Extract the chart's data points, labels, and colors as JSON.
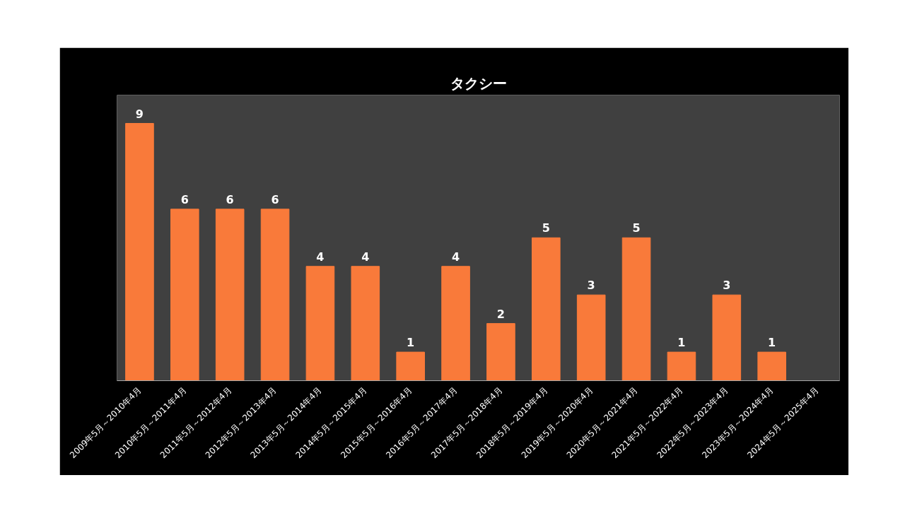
{
  "chart_data": {
    "type": "bar",
    "title": "タクシー",
    "categories": [
      "2009年5月～2010年4月",
      "2010年5月～2011年4月",
      "2011年5月～2012年4月",
      "2012年5月～2013年4月",
      "2013年5月～2014年4月",
      "2014年5月～2015年4月",
      "2015年5月～2016年4月",
      "2016年5月～2017年4月",
      "2017年5月～2018年4月",
      "2018年5月～2019年4月",
      "2019年5月～2020年4月",
      "2020年5月～2021年4月",
      "2021年5月～2022年4月",
      "2022年5月～2023年4月",
      "2023年5月～2024年4月",
      "2024年5月～2025年4月"
    ],
    "values": [
      9,
      6,
      6,
      6,
      4,
      4,
      1,
      4,
      2,
      5,
      3,
      5,
      1,
      3,
      1,
      null
    ],
    "color": "#f97a3a",
    "data_labels": true,
    "grid": false
  }
}
